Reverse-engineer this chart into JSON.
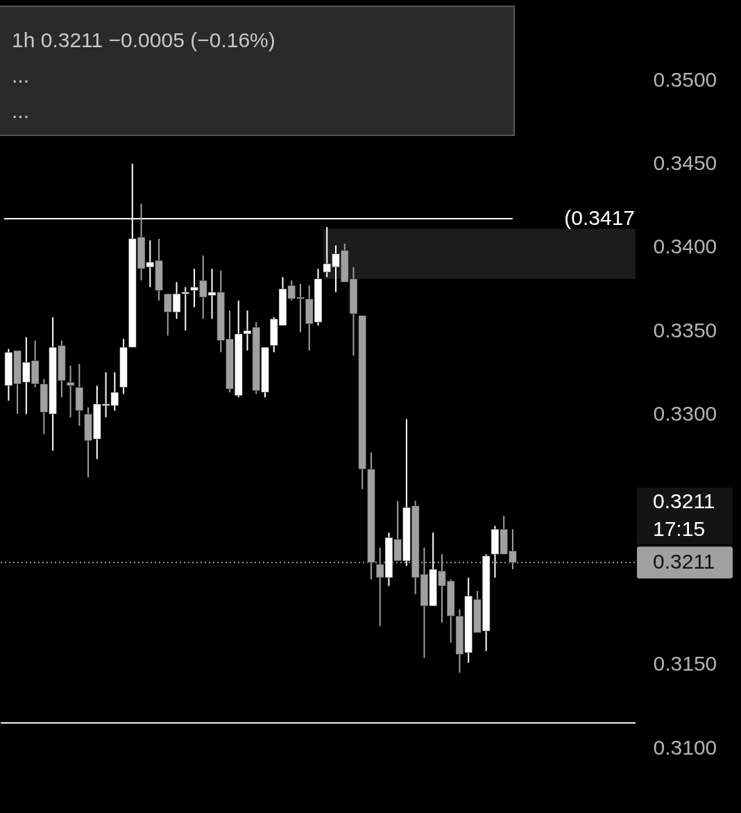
{
  "chart_data": {
    "type": "candlestick",
    "title": "1h 0.3211 −0.0005 (−0.16%)",
    "annotations": [
      "...",
      "...",
      "0.3211 17:15"
    ],
    "categories": [
      null,
      null,
      null,
      null,
      null,
      null,
      null,
      null,
      null,
      null,
      null,
      null,
      null,
      null,
      null,
      null,
      null,
      null,
      null,
      null,
      null,
      null,
      null,
      null,
      null,
      null,
      null,
      null,
      null,
      null,
      null,
      null,
      null,
      null,
      null,
      null,
      null,
      null,
      null,
      null,
      null,
      null,
      null,
      null,
      null,
      null,
      null,
      null,
      null,
      null,
      null,
      null,
      null,
      null,
      null,
      null,
      null,
      null,
      null,
      null,
      null,
      null,
      null,
      null,
      null,
      null,
      null,
      null,
      null,
      null,
      null
    ],
    "ohlc": [
      [
        0.3317,
        0.3339,
        0.3308,
        0.3337
      ],
      [
        0.3338,
        0.3338,
        0.33,
        0.3318
      ],
      [
        0.3319,
        0.3346,
        0.33,
        0.3331
      ],
      [
        0.3332,
        0.3344,
        0.3316,
        0.3318
      ],
      [
        0.3318,
        0.3321,
        0.3288,
        0.3301
      ],
      [
        0.33,
        0.3358,
        0.3278,
        0.334
      ],
      [
        0.3341,
        0.3344,
        0.331,
        0.332
      ],
      [
        0.3319,
        0.3329,
        0.3298,
        0.3317
      ],
      [
        0.3316,
        0.333,
        0.3293,
        0.3302
      ],
      [
        0.33,
        0.3304,
        0.3262,
        0.3284
      ],
      [
        0.3285,
        0.3317,
        0.3273,
        0.3306
      ],
      [
        0.3305,
        0.3325,
        0.3298,
        0.3306
      ],
      [
        0.3305,
        0.3325,
        0.3302,
        0.3313
      ],
      [
        0.3316,
        0.3345,
        0.3312,
        0.334
      ],
      [
        0.334,
        0.345,
        0.334,
        0.3405
      ],
      [
        0.3406,
        0.3426,
        0.338,
        0.3387
      ],
      [
        0.3388,
        0.3404,
        0.3376,
        0.3391
      ],
      [
        0.3392,
        0.3405,
        0.3368,
        0.3374
      ],
      [
        0.3372,
        0.3372,
        0.3347,
        0.3361
      ],
      [
        0.3361,
        0.3379,
        0.3357,
        0.3372
      ],
      [
        0.3372,
        0.3376,
        0.335,
        0.3373
      ],
      [
        0.3374,
        0.3387,
        0.3364,
        0.3376
      ],
      [
        0.338,
        0.3395,
        0.3357,
        0.337
      ],
      [
        0.3371,
        0.3387,
        0.3357,
        0.3373
      ],
      [
        0.3373,
        0.3386,
        0.3337,
        0.3344
      ],
      [
        0.3345,
        0.3362,
        0.3313,
        0.3315
      ],
      [
        0.3311,
        0.3368,
        0.331,
        0.3348
      ],
      [
        0.3348,
        0.3362,
        0.3338,
        0.335
      ],
      [
        0.3352,
        0.3355,
        0.3312,
        0.3314
      ],
      [
        0.3313,
        0.334,
        0.331,
        0.334
      ],
      [
        0.3341,
        0.3358,
        0.3337,
        0.3357
      ],
      [
        0.3353,
        0.3382,
        0.3353,
        0.3375
      ],
      [
        0.3377,
        0.338,
        0.3368,
        0.3369
      ],
      [
        0.337,
        0.3378,
        0.3349,
        0.3369
      ],
      [
        0.3369,
        0.3377,
        0.3338,
        0.3354
      ],
      [
        0.3355,
        0.3387,
        0.3353,
        0.3381
      ],
      [
        0.3385,
        0.3412,
        0.3382,
        0.339
      ],
      [
        0.3388,
        0.3401,
        0.3373,
        0.3396
      ],
      [
        0.3398,
        0.3402,
        0.3379,
        0.3379
      ],
      [
        0.3381,
        0.3388,
        0.3335,
        0.336
      ],
      [
        0.3359,
        0.3359,
        0.3255,
        0.3267
      ],
      [
        0.3267,
        0.3277,
        0.3201,
        0.3211
      ],
      [
        0.321,
        0.322,
        0.3173,
        0.3202
      ],
      [
        0.3202,
        0.3229,
        0.3197,
        0.3226
      ],
      [
        0.3225,
        0.3248,
        0.3212,
        0.3212
      ],
      [
        0.3212,
        0.3297,
        0.3209,
        0.3244
      ],
      [
        0.3245,
        0.3248,
        0.3192,
        0.3202
      ],
      [
        0.3204,
        0.322,
        0.3154,
        0.3185
      ],
      [
        0.3185,
        0.3229,
        0.3185,
        0.3207
      ],
      [
        0.3206,
        0.3216,
        0.3175,
        0.3197
      ],
      [
        0.32,
        0.3201,
        0.3163,
        0.3179
      ],
      [
        0.3179,
        0.3183,
        0.3145,
        0.3156
      ],
      [
        0.3157,
        0.3202,
        0.3151,
        0.3191
      ],
      [
        0.3189,
        0.3194,
        0.3169,
        0.3169
      ],
      [
        0.317,
        0.3216,
        0.3158,
        0.3215
      ],
      [
        0.3216,
        0.3233,
        0.3202,
        0.3231
      ],
      [
        0.3231,
        0.3239,
        0.3216,
        0.3216
      ],
      [
        0.3218,
        0.3231,
        0.3207,
        0.3211
      ],
      null,
      null,
      null,
      null,
      null,
      null,
      null,
      null,
      null,
      null,
      null,
      null,
      null
    ],
    "colors": [
      "#ffffff",
      "#a0a0a0",
      "#ffffff",
      "#a0a0a0",
      "#a0a0a0",
      "#ffffff",
      "#a0a0a0",
      "#a0a0a0",
      "#a0a0a0",
      "#a0a0a0",
      "#ffffff",
      "#ffffff",
      "#ffffff",
      "#ffffff",
      "#ffffff",
      "#a0a0a0",
      "#ffffff",
      "#a0a0a0",
      "#a0a0a0",
      "#ffffff",
      "#ffffff",
      "#ffffff",
      "#a0a0a0",
      "#ffffff",
      "#a0a0a0",
      "#a0a0a0",
      "#ffffff",
      "#ffffff",
      "#a0a0a0",
      "#ffffff",
      "#ffffff",
      "#ffffff",
      "#a0a0a0",
      "#a0a0a0",
      "#a0a0a0",
      "#ffffff",
      "#ffffff",
      "#ffffff",
      "#a0a0a0",
      "#a0a0a0",
      "#a0a0a0",
      "#a0a0a0",
      "#a0a0a0",
      "#ffffff",
      "#a0a0a0",
      "#ffffff",
      "#a0a0a0",
      "#a0a0a0",
      "#ffffff",
      "#a0a0a0",
      "#a0a0a0",
      "#a0a0a0",
      "#ffffff",
      "#a0a0a0",
      "#ffffff",
      "#ffffff",
      "#a0a0a0",
      "#a0a0a0",
      null,
      null,
      null,
      null,
      null,
      null,
      null,
      null,
      null,
      null,
      null,
      null,
      null
    ],
    "ylim": [
      0.3061,
      0.3548
    ],
    "yticks": [
      {
        "value": 0.31,
        "label": "0.3100"
      },
      {
        "value": 0.315,
        "label": "0.3150"
      },
      {
        "value": 0.33,
        "label": "0.3300"
      },
      {
        "value": 0.335,
        "label": "0.3350"
      },
      {
        "value": 0.34,
        "label": "0.3400"
      },
      {
        "value": 0.345,
        "label": "0.3450"
      },
      {
        "value": 0.35,
        "label": "0.3500"
      }
    ],
    "ref_lines": [
      {
        "axis": "y",
        "value": 0.3417,
        "label": "(0.3417",
        "color": "#ffffff"
      },
      {
        "axis": "y",
        "value": 0.3115,
        "color": "#ffffff"
      },
      {
        "axis": "y",
        "value": 0.3211,
        "label": "0.3211",
        "color": "#a0a0a0",
        "line_style": "dotted"
      }
    ],
    "bands": [
      {
        "axis": "y",
        "from": 0.3381,
        "to": 0.3411,
        "color": "#1c1c1c"
      }
    ],
    "grid": false
  }
}
